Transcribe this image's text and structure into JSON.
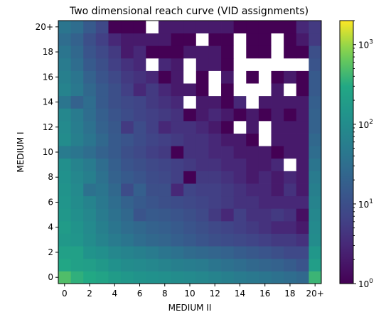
{
  "chart_data": {
    "type": "heatmap",
    "title": "Two dimensional reach curve (VID assignments)",
    "xlabel": "MEDIUM II",
    "ylabel": "MEDIUM I",
    "x_tick_labels": [
      "0",
      "2",
      "4",
      "6",
      "8",
      "10",
      "12",
      "14",
      "16",
      "18",
      "20+"
    ],
    "y_tick_labels": [
      "0",
      "2",
      "4",
      "6",
      "8",
      "10",
      "12",
      "14",
      "16",
      "18",
      "20+"
    ],
    "x_categories": [
      "0",
      "1",
      "2",
      "3",
      "4",
      "5",
      "6",
      "7",
      "8",
      "9",
      "10",
      "11",
      "12",
      "13",
      "14",
      "15",
      "16",
      "17",
      "18",
      "19",
      "20+"
    ],
    "y_categories": [
      "0",
      "1",
      "2",
      "3",
      "4",
      "5",
      "6",
      "7",
      "8",
      "9",
      "10",
      "11",
      "12",
      "13",
      "14",
      "15",
      "16",
      "17",
      "18",
      "19",
      "20+"
    ],
    "colorbar": {
      "scale": "log",
      "colormap": "viridis",
      "min": 1,
      "max": 2000,
      "tick_labels": [
        "10^0",
        "10^1",
        "10^2",
        "10^3"
      ]
    },
    "missing_value_color": "#ffffff",
    "values": [
      [
        500,
        350,
        300,
        250,
        180,
        150,
        130,
        120,
        110,
        100,
        90,
        80,
        70,
        60,
        50,
        45,
        40,
        35,
        30,
        25,
        400
      ],
      [
        280,
        220,
        200,
        160,
        120,
        100,
        90,
        80,
        70,
        60,
        55,
        50,
        40,
        35,
        30,
        25,
        22,
        20,
        16,
        12,
        200
      ],
      [
        220,
        220,
        130,
        110,
        80,
        70,
        60,
        50,
        40,
        35,
        28,
        25,
        22,
        20,
        16,
        14,
        12,
        10,
        8,
        8,
        150
      ],
      [
        160,
        140,
        100,
        70,
        50,
        40,
        30,
        25,
        22,
        18,
        15,
        12,
        10,
        9,
        8,
        7,
        6,
        5,
        5,
        4,
        100
      ],
      [
        180,
        130,
        90,
        60,
        40,
        30,
        25,
        20,
        18,
        15,
        12,
        10,
        8,
        7,
        6,
        5,
        4,
        3,
        3,
        2,
        90
      ],
      [
        150,
        110,
        80,
        50,
        35,
        25,
        12,
        15,
        14,
        12,
        10,
        8,
        5,
        3,
        6,
        4,
        4,
        5,
        4,
        1.5,
        80
      ],
      [
        140,
        100,
        70,
        45,
        30,
        20,
        15,
        12,
        10,
        9,
        8,
        7,
        6,
        5,
        4,
        4,
        3,
        3,
        3,
        3,
        70
      ],
      [
        130,
        90,
        35,
        40,
        25,
        9,
        18,
        10,
        10,
        3,
        7,
        6,
        6,
        5,
        4,
        3,
        3,
        2,
        4,
        2,
        60
      ],
      [
        120,
        80,
        60,
        35,
        20,
        15,
        12,
        9,
        8,
        6,
        1,
        5,
        5,
        4,
        3,
        2,
        3,
        2,
        3,
        2,
        50
      ],
      [
        110,
        70,
        50,
        30,
        18,
        12,
        10,
        8,
        7,
        6,
        5,
        4,
        4,
        3,
        3,
        2,
        2,
        3,
        0,
        2,
        40
      ],
      [
        50,
        40,
        30,
        20,
        15,
        10,
        8,
        6,
        5,
        1,
        4,
        4,
        3,
        3,
        2,
        2,
        2,
        1,
        2,
        2,
        30
      ],
      [
        100,
        60,
        40,
        25,
        15,
        12,
        9,
        7,
        6,
        5,
        4,
        4,
        3,
        2,
        2,
        1,
        0,
        2,
        2,
        2,
        25
      ],
      [
        90,
        55,
        35,
        20,
        14,
        5,
        9,
        6,
        3,
        4,
        4,
        3,
        2,
        1,
        0,
        2,
        0,
        2,
        2,
        2,
        20
      ],
      [
        80,
        50,
        30,
        18,
        12,
        9,
        7,
        6,
        5,
        4,
        1,
        2,
        3,
        2,
        1,
        2,
        1,
        2,
        1,
        2,
        20
      ],
      [
        40,
        20,
        30,
        15,
        10,
        8,
        7,
        5,
        4,
        3,
        0,
        2,
        2,
        1,
        3,
        0,
        2,
        2,
        2,
        2,
        18
      ],
      [
        70,
        45,
        25,
        15,
        10,
        6,
        3,
        5,
        3,
        2,
        2,
        1,
        0,
        1,
        0,
        0,
        0,
        2,
        0,
        1,
        15
      ],
      [
        60,
        40,
        20,
        12,
        8,
        5,
        4,
        3,
        1,
        2,
        0,
        1,
        0,
        2,
        0,
        1,
        0,
        1,
        2,
        1,
        15
      ],
      [
        50,
        30,
        15,
        10,
        6,
        4,
        3,
        0,
        3,
        2,
        0,
        2,
        2,
        1,
        0,
        0,
        0,
        0,
        0,
        0,
        12
      ],
      [
        40,
        25,
        12,
        8,
        5,
        2,
        3,
        1,
        1,
        1,
        2,
        2,
        2,
        1,
        0,
        1,
        1,
        0,
        1,
        1,
        10
      ],
      [
        30,
        20,
        10,
        6,
        3,
        2,
        2,
        2,
        2,
        1,
        1,
        0,
        1,
        1,
        0,
        1,
        1,
        0,
        1,
        2,
        5
      ],
      [
        40,
        30,
        15,
        8,
        1,
        1,
        1,
        0,
        2,
        2,
        2,
        2,
        2,
        2,
        1,
        1,
        1,
        1,
        1,
        3,
        5
      ]
    ]
  }
}
